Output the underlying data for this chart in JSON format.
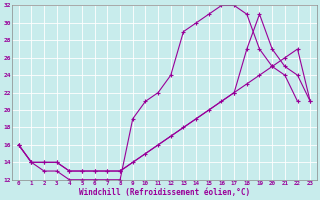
{
  "xlabel": "Windchill (Refroidissement éolien,°C)",
  "bg_color": "#c8ecec",
  "line_color": "#990099",
  "grid_color": "#aadddd",
  "marker": "+",
  "xlim": [
    -0.5,
    23.5
  ],
  "ylim": [
    12,
    32
  ],
  "xticks": [
    0,
    1,
    2,
    3,
    4,
    5,
    6,
    7,
    8,
    9,
    10,
    11,
    12,
    13,
    14,
    15,
    16,
    17,
    18,
    19,
    20,
    21,
    22,
    23
  ],
  "yticks": [
    12,
    14,
    16,
    18,
    20,
    22,
    24,
    26,
    28,
    30,
    32
  ],
  "line1_x": [
    0,
    1,
    2,
    3,
    4,
    5,
    6,
    7,
    8,
    9,
    10,
    11,
    12,
    13,
    14,
    15,
    16,
    17,
    18,
    19,
    20,
    21,
    22
  ],
  "line1_y": [
    16,
    14,
    13,
    13,
    12,
    12,
    12,
    12,
    12,
    19,
    21,
    22,
    24,
    29,
    30,
    31,
    32,
    32,
    31,
    27,
    25,
    24,
    21
  ],
  "line2_x": [
    0,
    1,
    2,
    3,
    4,
    5,
    6,
    7,
    8,
    17,
    18,
    19,
    20,
    21,
    22,
    23
  ],
  "line2_y": [
    16,
    14,
    14,
    14,
    13,
    13,
    13,
    13,
    13,
    22,
    27,
    31,
    27,
    25,
    24,
    21
  ],
  "line3_x": [
    0,
    1,
    2,
    3,
    4,
    5,
    6,
    7,
    8,
    9,
    10,
    11,
    12,
    13,
    14,
    15,
    16,
    17,
    18,
    19,
    20,
    21,
    22,
    23
  ],
  "line3_y": [
    16,
    14,
    14,
    14,
    13,
    13,
    13,
    13,
    13,
    14,
    15,
    16,
    17,
    18,
    19,
    20,
    21,
    22,
    23,
    24,
    25,
    26,
    27,
    21
  ]
}
